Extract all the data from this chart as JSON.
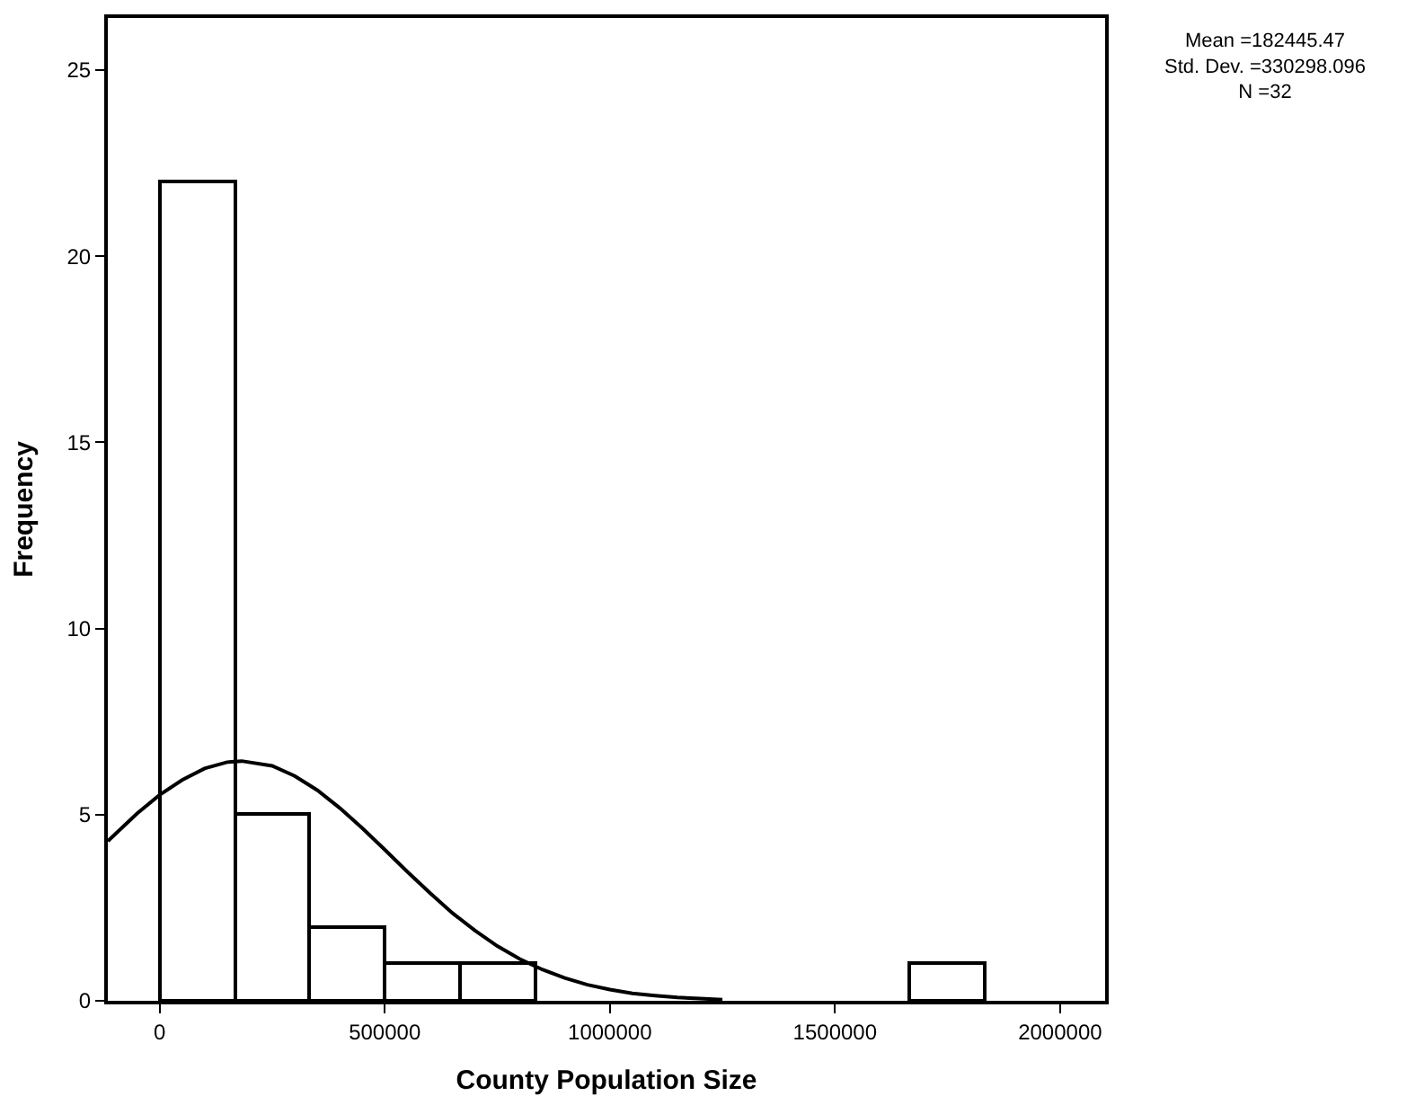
{
  "chart_data": {
    "type": "histogram",
    "xlabel": "County Population Size",
    "ylabel": "Frequency",
    "bins": [
      0,
      166667,
      333333,
      500000,
      666667,
      833333,
      1000000,
      1166667,
      1333333,
      1500000,
      1666667,
      1833333
    ],
    "values": [
      22,
      5,
      2,
      1,
      1,
      0,
      0,
      0,
      0,
      0,
      1
    ],
    "color": "#ffffff",
    "series": [
      {
        "type": "line",
        "color": "#000000",
        "x": [
          -115000,
          -50000,
          0,
          50000,
          100000,
          150000,
          182445,
          250000,
          300000,
          350000,
          400000,
          450000,
          500000,
          550000,
          600000,
          650000,
          700000,
          750000,
          800000,
          850000,
          900000,
          950000,
          1000000,
          1050000,
          1100000,
          1150000,
          1200000,
          1250000
        ],
        "values": [
          4.29,
          5.03,
          5.53,
          5.93,
          6.24,
          6.41,
          6.44,
          6.31,
          6.04,
          5.66,
          5.18,
          4.64,
          4.06,
          3.47,
          2.9,
          2.36,
          1.89,
          1.47,
          1.12,
          0.84,
          0.61,
          0.43,
          0.3,
          0.2,
          0.14,
          0.09,
          0.06,
          0.03
        ]
      }
    ],
    "xlim": [
      -115000,
      2100000
    ],
    "xticks": [
      0,
      500000,
      1000000,
      1500000,
      2000000
    ],
    "ylim": [
      0,
      26.4
    ],
    "yticks": [
      0,
      5,
      10,
      15,
      20,
      25
    ],
    "annotations": [
      "Mean =182445.47\nStd. Dev. =330298.096\nN =32"
    ]
  }
}
